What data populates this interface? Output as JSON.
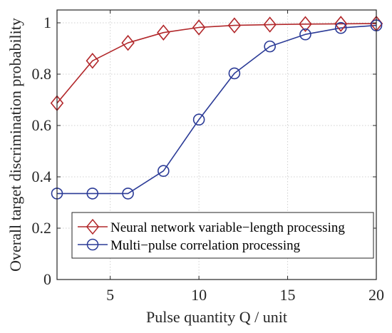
{
  "chart_data": {
    "type": "line",
    "title": "",
    "xlabel": "Pulse quantity Q / unit",
    "ylabel": "Overall target discrimination probability",
    "xlim": [
      2,
      20
    ],
    "ylim": [
      0,
      1.05
    ],
    "xticks": [
      5,
      10,
      15,
      20
    ],
    "yticks": [
      0,
      0.2,
      0.4,
      0.6,
      0.8,
      1
    ],
    "xtick_labels": [
      "5",
      "10",
      "15",
      "20"
    ],
    "ytick_labels": [
      "0",
      "0.2",
      "0.4",
      "0.6",
      "0.8",
      "1"
    ],
    "grid": true,
    "legend_position": "bottom-right",
    "x": [
      2,
      4,
      6,
      8,
      10,
      12,
      14,
      16,
      18,
      20
    ],
    "series": [
      {
        "name": "Neural network variable−length processing",
        "values": [
          0.687,
          0.852,
          0.922,
          0.962,
          0.982,
          0.99,
          0.993,
          0.995,
          0.996,
          0.997
        ],
        "color": "#b2282b",
        "marker": "diamond"
      },
      {
        "name": "Multi−pulse correlation processing",
        "values": [
          0.335,
          0.335,
          0.335,
          0.423,
          0.623,
          0.803,
          0.908,
          0.955,
          0.98,
          0.99
        ],
        "color": "#2b3b97",
        "marker": "circle"
      }
    ]
  }
}
